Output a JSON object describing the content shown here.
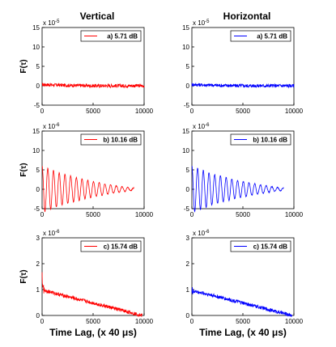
{
  "figure": {
    "col_titles": [
      "Vertical",
      "Horizontal"
    ],
    "ylabel": "F(τ)",
    "xlabel": "Time Lag, (x 40 μs)"
  },
  "chart_data": [
    {
      "type": "line",
      "row": 0,
      "col": 0,
      "color": "#ff0000",
      "exponent_label": "x 10",
      "exponent_sup": "-5",
      "legend": "a) 5.71 dB",
      "xlim": [
        0,
        10000
      ],
      "ylim": [
        -5,
        15
      ],
      "xticks": [
        0,
        5000,
        10000
      ],
      "yticks": [
        -5,
        0,
        5,
        10,
        15
      ],
      "x": [
        0,
        2500,
        5000,
        7500,
        10000
      ],
      "y": [
        0.3,
        0.1,
        0,
        0,
        0
      ]
    },
    {
      "type": "line",
      "row": 0,
      "col": 1,
      "color": "#0000ff",
      "exponent_label": "x 10",
      "exponent_sup": "-5",
      "legend": "a) 5.71 dB",
      "xlim": [
        0,
        10000
      ],
      "ylim": [
        -5,
        15
      ],
      "xticks": [
        0,
        5000,
        10000
      ],
      "yticks": [
        -5,
        0,
        5,
        10,
        15
      ],
      "x": [
        0,
        2500,
        5000,
        7500,
        10000
      ],
      "y": [
        0.3,
        0.1,
        0,
        0,
        0
      ]
    },
    {
      "type": "line",
      "row": 1,
      "col": 0,
      "color": "#ff0000",
      "exponent_label": "x 10",
      "exponent_sup": "-6",
      "legend": "b) 10.16 dB",
      "xlim": [
        0,
        10000
      ],
      "ylim": [
        -5,
        15
      ],
      "xticks": [
        0,
        5000,
        10000
      ],
      "yticks": [
        -5,
        0,
        5,
        10,
        15
      ],
      "x": [
        0,
        1000,
        2000,
        3000,
        4000,
        5000,
        6000,
        7000,
        8000,
        9000
      ],
      "y": [
        6,
        5,
        4,
        3.3,
        2.6,
        2,
        1.5,
        1,
        0.6,
        0.3
      ]
    },
    {
      "type": "line",
      "row": 1,
      "col": 1,
      "color": "#0000ff",
      "exponent_label": "x 10",
      "exponent_sup": "-6",
      "legend": "b) 10.16 dB",
      "xlim": [
        0,
        10000
      ],
      "ylim": [
        -5,
        15
      ],
      "xticks": [
        0,
        5000,
        10000
      ],
      "yticks": [
        -5,
        0,
        5,
        10,
        15
      ],
      "x": [
        0,
        1000,
        2000,
        3000,
        4000,
        5000,
        6000,
        7000,
        8000,
        9000
      ],
      "y": [
        6,
        5,
        4,
        3.3,
        2.6,
        2,
        1.5,
        1,
        0.6,
        0.3
      ]
    },
    {
      "type": "line",
      "row": 2,
      "col": 0,
      "color": "#ff0000",
      "exponent_label": "x 10",
      "exponent_sup": "-6",
      "legend": "c) 15.74 dB",
      "xlim": [
        0,
        10000
      ],
      "ylim": [
        0,
        3
      ],
      "xticks": [
        0,
        5000,
        10000
      ],
      "yticks": [
        0,
        1,
        2,
        3
      ],
      "x": [
        0,
        50,
        400,
        2000,
        4000,
        6000,
        8000,
        9800
      ],
      "y": [
        1.6,
        1.05,
        0.95,
        0.78,
        0.58,
        0.38,
        0.18,
        0
      ]
    },
    {
      "type": "line",
      "row": 2,
      "col": 1,
      "color": "#0000ff",
      "exponent_label": "x 10",
      "exponent_sup": "-6",
      "legend": "c) 15.74 dB",
      "xlim": [
        0,
        10000
      ],
      "ylim": [
        0,
        3
      ],
      "xticks": [
        0,
        5000,
        10000
      ],
      "yticks": [
        0,
        1,
        2,
        3
      ],
      "x": [
        0,
        400,
        2000,
        4000,
        6000,
        8000,
        9800
      ],
      "y": [
        0.95,
        0.92,
        0.78,
        0.58,
        0.38,
        0.18,
        0
      ]
    }
  ]
}
